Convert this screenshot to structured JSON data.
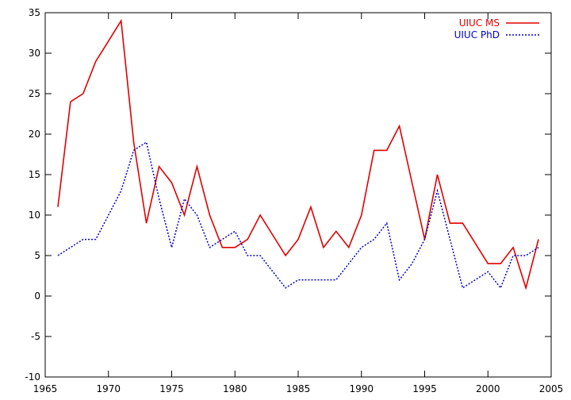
{
  "chart_data": {
    "type": "line",
    "title": "",
    "xlabel": "",
    "ylabel": "",
    "xlim": [
      1965,
      2005
    ],
    "ylim": [
      -10,
      35
    ],
    "xticks": [
      1965,
      1970,
      1975,
      1980,
      1985,
      1990,
      1995,
      2000,
      2005
    ],
    "yticks": [
      -10,
      -5,
      0,
      5,
      10,
      15,
      20,
      25,
      30,
      35
    ],
    "grid": false,
    "legend_position": "top-right",
    "series": [
      {
        "name": "UIUC MS",
        "color": "#e00000",
        "style": "solid",
        "x": [
          1966,
          1967,
          1968,
          1969,
          1970,
          1971,
          1972,
          1973,
          1974,
          1975,
          1976,
          1977,
          1978,
          1979,
          1980,
          1981,
          1982,
          1984,
          1985,
          1986,
          1987,
          1988,
          1989,
          1990,
          1991,
          1992,
          1993,
          1995,
          1996,
          1997,
          1998,
          2000,
          2001,
          2002,
          2003,
          2004
        ],
        "y": [
          11,
          24,
          25,
          29,
          31.5,
          34,
          19,
          9,
          16,
          14,
          10,
          16,
          10,
          6,
          6,
          7,
          10,
          5,
          7,
          11,
          6,
          8,
          6,
          10,
          18,
          18,
          21,
          7,
          15,
          9,
          9,
          4,
          4,
          6,
          1,
          7
        ]
      },
      {
        "name": "UIUC PhD",
        "color": "#0000cc",
        "style": "dotted",
        "x": [
          1966,
          1967,
          1968,
          1969,
          1970,
          1971,
          1972,
          1973,
          1974,
          1975,
          1976,
          1977,
          1978,
          1979,
          1980,
          1981,
          1982,
          1984,
          1985,
          1986,
          1987,
          1988,
          1989,
          1990,
          1991,
          1992,
          1993,
          1994,
          1995,
          1996,
          1997,
          1998,
          1999,
          2000,
          2001,
          2002,
          2003,
          2004
        ],
        "y": [
          5,
          6,
          7,
          7,
          10,
          13,
          18,
          19,
          12,
          6,
          12,
          10,
          6,
          7,
          8,
          5,
          5,
          1,
          2,
          2,
          2,
          2,
          4,
          6,
          7,
          9,
          2,
          4,
          7,
          13,
          7,
          1,
          2,
          3,
          1,
          5,
          5,
          6
        ]
      }
    ]
  }
}
